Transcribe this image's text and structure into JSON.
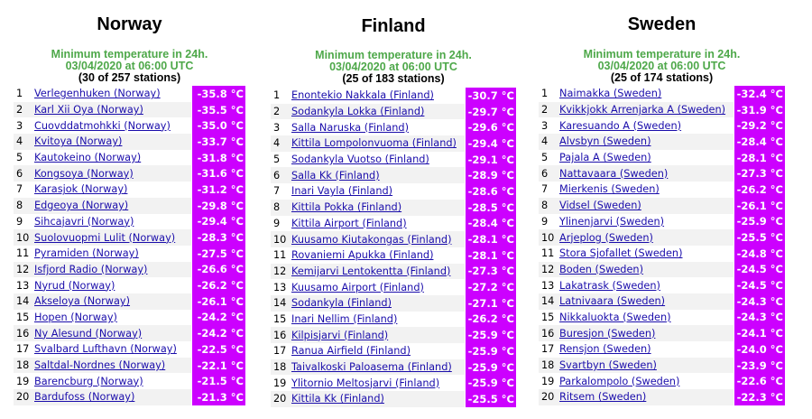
{
  "columns": [
    {
      "country": "Norway",
      "subtitle": "Minimum temperature in 24h.",
      "date": "03/04/2020 at 06:00 UTC",
      "count": "(30 of 257 stations)",
      "rows": [
        {
          "n": "1",
          "station": "Verlegenhuken (Norway)",
          "temp": "-35.8 °C"
        },
        {
          "n": "2",
          "station": "Karl Xii Oya (Norway)",
          "temp": "-35.5 °C"
        },
        {
          "n": "3",
          "station": "Cuovddatmohkki (Norway)",
          "temp": "-35.0 °C"
        },
        {
          "n": "4",
          "station": "Kvitoya (Norway)",
          "temp": "-33.7 °C"
        },
        {
          "n": "5",
          "station": "Kautokeino (Norway)",
          "temp": "-31.8 °C"
        },
        {
          "n": "6",
          "station": "Kongsoya (Norway)",
          "temp": "-31.6 °C"
        },
        {
          "n": "7",
          "station": "Karasjok (Norway)",
          "temp": "-31.2 °C"
        },
        {
          "n": "8",
          "station": "Edgeoya (Norway)",
          "temp": "-29.8 °C"
        },
        {
          "n": "9",
          "station": "Sihcajavri (Norway)",
          "temp": "-29.4 °C"
        },
        {
          "n": "10",
          "station": "Suolovuopmi Lulit (Norway)",
          "temp": "-28.3 °C"
        },
        {
          "n": "11",
          "station": "Pyramiden (Norway)",
          "temp": "-27.5 °C"
        },
        {
          "n": "12",
          "station": "Isfjord Radio (Norway)",
          "temp": "-26.6 °C"
        },
        {
          "n": "13",
          "station": "Nyrud (Norway)",
          "temp": "-26.2 °C"
        },
        {
          "n": "14",
          "station": "Akseloya (Norway)",
          "temp": "-26.1 °C"
        },
        {
          "n": "15",
          "station": "Hopen (Norway)",
          "temp": "-24.2 °C"
        },
        {
          "n": "16",
          "station": "Ny Alesund (Norway)",
          "temp": "-24.2 °C"
        },
        {
          "n": "17",
          "station": "Svalbard Lufthavn (Norway)",
          "temp": "-22.5 °C"
        },
        {
          "n": "18",
          "station": "Saltdal-Nordnes (Norway)",
          "temp": "-22.1 °C"
        },
        {
          "n": "19",
          "station": "Barencburg (Norway)",
          "temp": "-21.5 °C"
        },
        {
          "n": "20",
          "station": "Bardufoss (Norway)",
          "temp": "-21.3 °C"
        }
      ]
    },
    {
      "country": "Finland",
      "subtitle": "Minimum temperature in 24h.",
      "date": "03/04/2020 at 06:00 UTC",
      "count": "(25 of 183 stations)",
      "rows": [
        {
          "n": "1",
          "station": "Enontekio Nakkala (Finland)",
          "temp": "-30.7 °C"
        },
        {
          "n": "2",
          "station": "Sodankyla Lokka (Finland)",
          "temp": "-29.7 °C"
        },
        {
          "n": "3",
          "station": "Salla Naruska (Finland)",
          "temp": "-29.6 °C"
        },
        {
          "n": "4",
          "station": "Kittila Lompolonvuoma (Finland)",
          "temp": "-29.4 °C"
        },
        {
          "n": "5",
          "station": "Sodankyla Vuotso (Finland)",
          "temp": "-29.1 °C"
        },
        {
          "n": "6",
          "station": "Salla Kk (Finland)",
          "temp": "-28.9 °C"
        },
        {
          "n": "7",
          "station": "Inari Vayla (Finland)",
          "temp": "-28.6 °C"
        },
        {
          "n": "8",
          "station": "Kittila Pokka (Finland)",
          "temp": "-28.5 °C"
        },
        {
          "n": "9",
          "station": "Kittila Airport (Finland)",
          "temp": "-28.4 °C"
        },
        {
          "n": "10",
          "station": "Kuusamo Kiutakongas (Finland)",
          "temp": "-28.1 °C"
        },
        {
          "n": "11",
          "station": "Rovaniemi Apukka (Finland)",
          "temp": "-28.1 °C"
        },
        {
          "n": "12",
          "station": "Kemijarvi Lentokentta (Finland)",
          "temp": "-27.3 °C"
        },
        {
          "n": "13",
          "station": "Kuusamo Airport (Finland)",
          "temp": "-27.2 °C"
        },
        {
          "n": "14",
          "station": "Sodankyla (Finland)",
          "temp": "-27.1 °C"
        },
        {
          "n": "15",
          "station": "Inari Nellim (Finland)",
          "temp": "-26.2 °C"
        },
        {
          "n": "16",
          "station": "Kilpisjarvi (Finland)",
          "temp": "-25.9 °C"
        },
        {
          "n": "17",
          "station": "Ranua Airfield (Finland)",
          "temp": "-25.9 °C"
        },
        {
          "n": "18",
          "station": "Taivalkoski Paloasema (Finland)",
          "temp": "-25.9 °C"
        },
        {
          "n": "19",
          "station": "Ylitornio Meltosjarvi (Finland)",
          "temp": "-25.9 °C"
        },
        {
          "n": "20",
          "station": "Kittila Kk (Finland)",
          "temp": "-25.5 °C"
        }
      ]
    },
    {
      "country": "Sweden",
      "subtitle": "Minimum temperature in 24h.",
      "date": "03/04/2020 at 06:00 UTC",
      "count": "(25 of 174 stations)",
      "rows": [
        {
          "n": "1",
          "station": "Naimakka (Sweden)",
          "temp": "-32.4 °C"
        },
        {
          "n": "2",
          "station": "Kvikkjokk Arrenjarka A (Sweden)",
          "temp": "-31.9 °C"
        },
        {
          "n": "3",
          "station": "Karesuando A (Sweden)",
          "temp": "-29.2 °C"
        },
        {
          "n": "4",
          "station": "Alvsbyn (Sweden)",
          "temp": "-28.4 °C"
        },
        {
          "n": "5",
          "station": "Pajala A (Sweden)",
          "temp": "-28.1 °C"
        },
        {
          "n": "6",
          "station": "Nattavaara (Sweden)",
          "temp": "-27.3 °C"
        },
        {
          "n": "7",
          "station": "Mierkenis (Sweden)",
          "temp": "-26.2 °C"
        },
        {
          "n": "8",
          "station": "Vidsel (Sweden)",
          "temp": "-26.1 °C"
        },
        {
          "n": "9",
          "station": "Ylinenjarvi (Sweden)",
          "temp": "-25.9 °C"
        },
        {
          "n": "10",
          "station": "Arjeplog (Sweden)",
          "temp": "-25.5 °C"
        },
        {
          "n": "11",
          "station": "Stora Sjofallet (Sweden)",
          "temp": "-24.8 °C"
        },
        {
          "n": "12",
          "station": "Boden (Sweden)",
          "temp": "-24.5 °C"
        },
        {
          "n": "13",
          "station": "Lakatrask (Sweden)",
          "temp": "-24.5 °C"
        },
        {
          "n": "14",
          "station": "Latnivaara (Sweden)",
          "temp": "-24.3 °C"
        },
        {
          "n": "15",
          "station": "Nikkaluokta (Sweden)",
          "temp": "-24.3 °C"
        },
        {
          "n": "16",
          "station": "Buresjon (Sweden)",
          "temp": "-24.1 °C"
        },
        {
          "n": "17",
          "station": "Rensjon (Sweden)",
          "temp": "-24.0 °C"
        },
        {
          "n": "18",
          "station": "Svartbyn (Sweden)",
          "temp": "-23.9 °C"
        },
        {
          "n": "19",
          "station": "Parkalompolo (Sweden)",
          "temp": "-22.6 °C"
        },
        {
          "n": "20",
          "station": "Ritsem (Sweden)",
          "temp": "-22.3 °C"
        }
      ]
    }
  ],
  "colors": {
    "temp_bg": "#cc00ff",
    "subtitle": "#4ea84a",
    "link": "#1a0dab"
  }
}
